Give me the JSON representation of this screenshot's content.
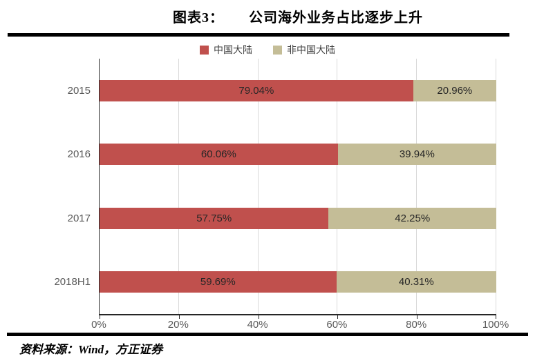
{
  "title": {
    "prefix": "图表3：",
    "text": "公司海外业务占比逐步上升"
  },
  "footer": {
    "source_label": "资料来源：Wind，方正证券"
  },
  "colors": {
    "mainland_red": "#C0504D",
    "overseas_tan": "#C4BD97",
    "gridline": "#D9D9D9",
    "axis_line": "#262626",
    "tick_label": "#595959",
    "divider": "#000000"
  },
  "chart_data": {
    "type": "bar",
    "orientation": "horizontal",
    "stacked": true,
    "title": "公司海外业务占比逐步上升",
    "categories": [
      "2015",
      "2016",
      "2017",
      "2018H1"
    ],
    "series": [
      {
        "name": "中国大陆",
        "color": "#C0504D",
        "values": [
          79.04,
          60.06,
          57.75,
          59.69
        ]
      },
      {
        "name": "非中国大陆",
        "color": "#C4BD97",
        "values": [
          20.96,
          39.94,
          42.25,
          40.31
        ]
      }
    ],
    "value_labels": [
      [
        "79.04%",
        "20.96%"
      ],
      [
        "60.06%",
        "39.94%"
      ],
      [
        "57.75%",
        "42.25%"
      ],
      [
        "59.69%",
        "40.31%"
      ]
    ],
    "x_ticks": [
      "0%",
      "20%",
      "40%",
      "60%",
      "80%",
      "100%"
    ],
    "xlim": [
      0,
      100
    ],
    "grid": "vertical",
    "legend_position": "top"
  }
}
